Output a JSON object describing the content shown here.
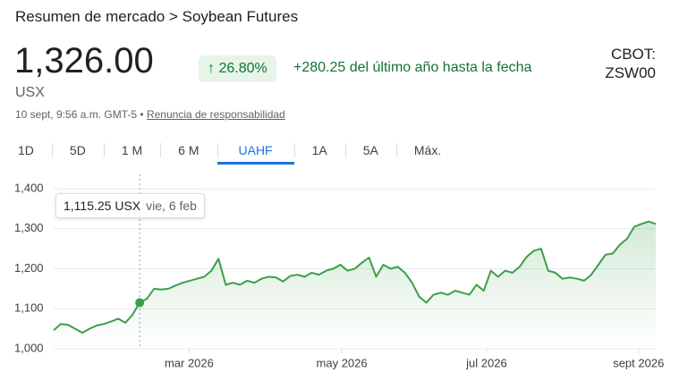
{
  "header": {
    "breadcrumb": "Resumen de mercado > Soybean Futures",
    "price": "1,326.00",
    "unit": "USX",
    "change_percent": "26.80%",
    "change_text": "+280.25 del último año hasta la fecha",
    "exchange": "CBOT:",
    "symbol": "ZSW00",
    "timestamp": "10 sept, 9:56 a.m. GMT-5 •",
    "disclaimer": "Renuncia de responsabilidad"
  },
  "tabs": [
    "1D",
    "5D",
    "1 M",
    "6 M",
    "UAHF",
    "1A",
    "5A",
    "Máx."
  ],
  "active_tab": "UAHF",
  "tooltip": {
    "value_label": "1,115.25 USX",
    "date": "vie, 6 feb"
  },
  "chart_data": {
    "type": "area",
    "color": "#3c9f4a",
    "values": [
      1046,
      1062,
      1060,
      1050,
      1040,
      1050,
      1058,
      1062,
      1068,
      1075,
      1065,
      1085,
      1115.25,
      1125,
      1150,
      1148,
      1150,
      1158,
      1165,
      1170,
      1175,
      1180,
      1195,
      1225,
      1160,
      1165,
      1160,
      1170,
      1165,
      1175,
      1180,
      1178,
      1168,
      1182,
      1185,
      1180,
      1190,
      1185,
      1195,
      1200,
      1210,
      1195,
      1200,
      1215,
      1228,
      1180,
      1210,
      1200,
      1205,
      1190,
      1165,
      1130,
      1115,
      1135,
      1140,
      1135,
      1145,
      1140,
      1135,
      1160,
      1145,
      1195,
      1180,
      1195,
      1190,
      1205,
      1230,
      1245,
      1250,
      1195,
      1190,
      1175,
      1178,
      1175,
      1170,
      1185,
      1210,
      1235,
      1238,
      1260,
      1275,
      1305,
      1312,
      1318,
      1312
    ],
    "highlight_index": 12,
    "xlim": [
      0,
      84
    ],
    "xticks": [
      {
        "value": 18.9,
        "label": "mar 2026"
      },
      {
        "value": 40.2,
        "label": "may 2026"
      },
      {
        "value": 60.4,
        "label": "jul 2026"
      },
      {
        "value": 81.6,
        "label": "sept 2026"
      }
    ],
    "ylim": [
      1000,
      1400
    ],
    "yticks": [
      {
        "value": 1000,
        "label": "1,000"
      },
      {
        "value": 1100,
        "label": "1,100"
      },
      {
        "value": 1200,
        "label": "1,200"
      },
      {
        "value": 1300,
        "label": "1,300"
      },
      {
        "value": 1400,
        "label": "1,400"
      }
    ],
    "grid": true
  }
}
